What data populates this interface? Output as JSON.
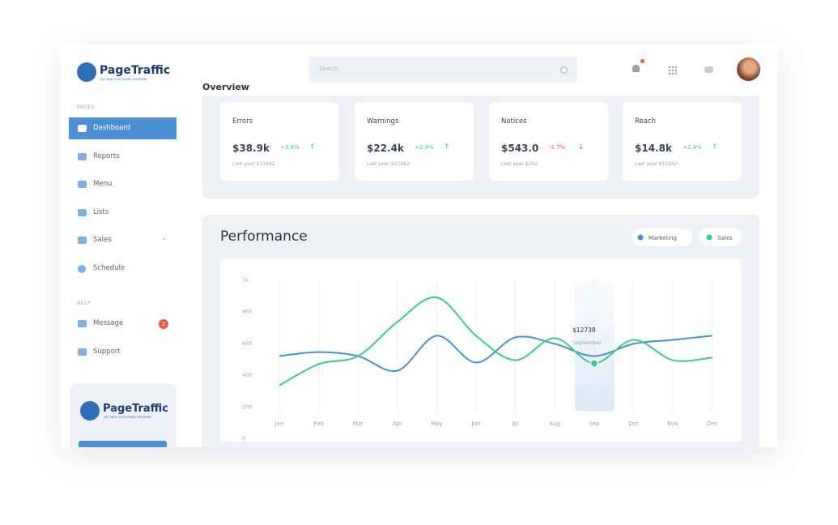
{
  "brand": {
    "name": "PageTraffic",
    "tagline": "GET NEW CUSTOMERS EVERYDAY"
  },
  "sidebar": {
    "pages_label": "PAGES",
    "pages": [
      "Dashboard",
      "Reports",
      "Menu",
      "Lists",
      "Sales",
      "Schedule"
    ],
    "help_label": "HELP",
    "help": [
      {
        "label": "Message",
        "badge": "2"
      },
      {
        "label": "Support"
      }
    ]
  },
  "header": {
    "search_placeholder": "Search"
  },
  "overview": {
    "title": "Overview",
    "cards": [
      {
        "title": "Errors",
        "value": "$38.9k",
        "change": "+3,4%",
        "last_year": "Last year $31942"
      },
      {
        "title": "Warnings",
        "value": "$22.4k",
        "change": "+2,4%",
        "last_year": "Last year $21942"
      },
      {
        "title": "Notices",
        "value": "$543.0",
        "change": "-1,7%",
        "last_year": "Last year $242"
      },
      {
        "title": "Reach",
        "value": "$14.8k",
        "change": "+2,4%",
        "last_year": "Last year $11942"
      }
    ]
  },
  "chart_data": {
    "type": "line",
    "title": "Performance",
    "categories": [
      "Jan",
      "Feb",
      "Mar",
      "Apr",
      "May",
      "Jun",
      "Jul",
      "Aug",
      "Sep",
      "Oct",
      "Nov",
      "Dec"
    ],
    "series": [
      {
        "name": "Marketing",
        "color": "#4a90d2",
        "values": [
          518,
          543,
          518,
          426,
          646,
          477,
          636,
          595,
          518,
          595,
          620,
          646
        ]
      },
      {
        "name": "Sales",
        "color": "#3ccb8a",
        "values": [
          333,
          467,
          518,
          733,
          887,
          646,
          492,
          631,
          472,
          620,
          492,
          508
        ]
      }
    ],
    "ylim": [
      0,
      1000
    ],
    "yticks": [
      0,
      200,
      400,
      600,
      800,
      {
        "value": 1000,
        "label": "1k"
      }
    ],
    "tooltip": {
      "value": "$12738",
      "label": "September"
    }
  }
}
